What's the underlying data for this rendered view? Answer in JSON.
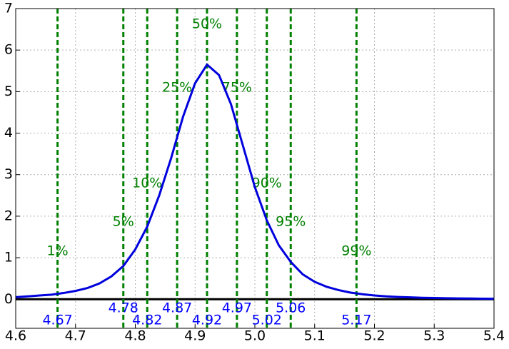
{
  "chart_data": {
    "type": "line",
    "x": [
      4.6,
      4.62,
      4.64,
      4.66,
      4.68,
      4.7,
      4.72,
      4.74,
      4.76,
      4.78,
      4.8,
      4.82,
      4.84,
      4.86,
      4.88,
      4.9,
      4.92,
      4.94,
      4.96,
      4.98,
      5.0,
      5.02,
      5.04,
      5.06,
      5.08,
      5.1,
      5.12,
      5.14,
      5.16,
      5.18,
      5.2,
      5.22,
      5.24,
      5.26,
      5.28,
      5.3,
      5.32,
      5.34,
      5.36,
      5.38,
      5.4
    ],
    "series": [
      {
        "color": "#0000dd",
        "values": [
          0.05,
          0.07,
          0.09,
          0.11,
          0.15,
          0.2,
          0.27,
          0.38,
          0.55,
          0.8,
          1.2,
          1.75,
          2.5,
          3.4,
          4.4,
          5.2,
          5.65,
          5.4,
          4.7,
          3.7,
          2.7,
          1.9,
          1.3,
          0.9,
          0.6,
          0.42,
          0.3,
          0.22,
          0.16,
          0.12,
          0.09,
          0.07,
          0.055,
          0.045,
          0.035,
          0.03,
          0.025,
          0.02,
          0.017,
          0.014,
          0.012
        ]
      }
    ],
    "markers": [
      {
        "label": "1%",
        "x": 4.67
      },
      {
        "label": "5%",
        "x": 4.78
      },
      {
        "label": "10%",
        "x": 4.82
      },
      {
        "label": "25%",
        "x": 4.87
      },
      {
        "label": "50%",
        "x": 4.92
      },
      {
        "label": "75%",
        "x": 4.97
      },
      {
        "label": "90%",
        "x": 5.02
      },
      {
        "label": "95%",
        "x": 5.06
      },
      {
        "label": "99%",
        "x": 5.17
      }
    ],
    "marker_color": "#008000",
    "marker_value_color": "#0000ff",
    "xlim": [
      4.6,
      5.4
    ],
    "xticks": [
      4.6,
      4.7,
      4.8,
      4.9,
      {
        "value": 5,
        "label": "5.0"
      },
      5.1,
      5.2,
      5.3,
      5.4
    ],
    "ylim": [
      -0.7,
      7
    ],
    "yticks": [
      0,
      1,
      2,
      3,
      4,
      5,
      6,
      7
    ],
    "grid": true
  }
}
